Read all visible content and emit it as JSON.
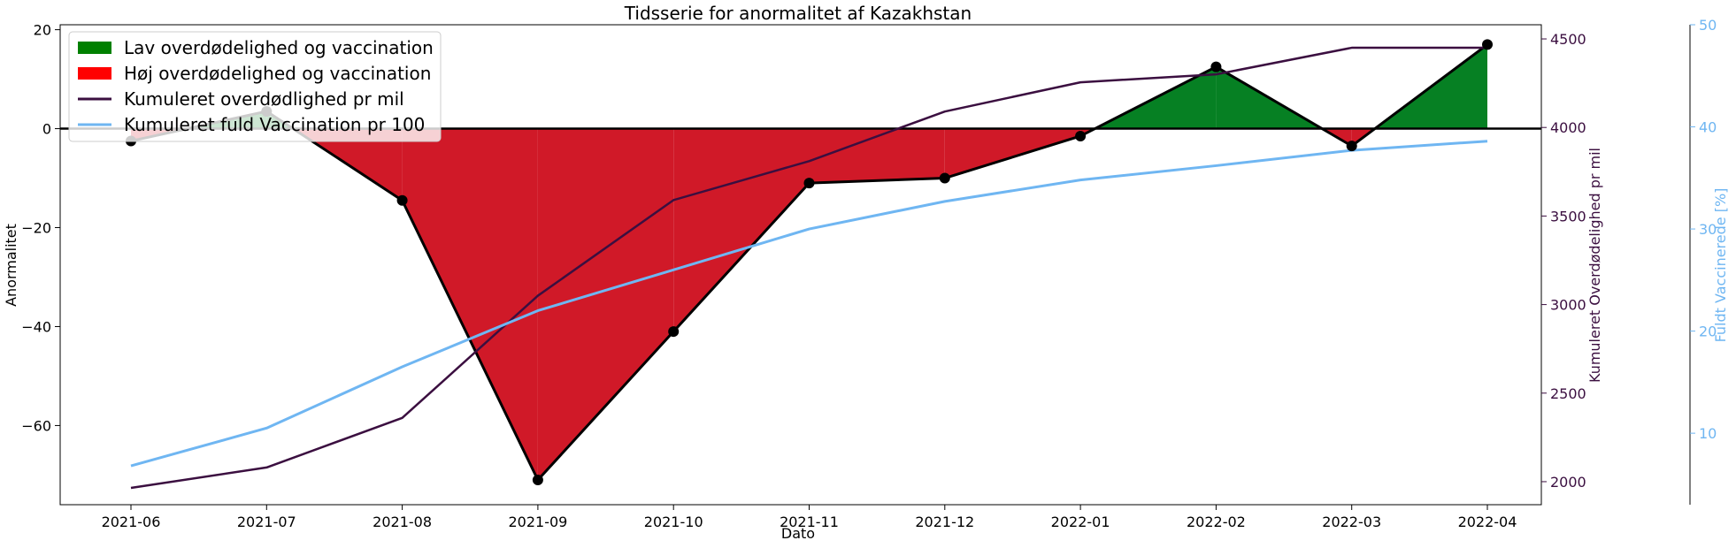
{
  "chart_data": {
    "type": "area",
    "title": "Tidsserie for anormalitet af Kazakhstan",
    "xlabel": "Dato",
    "ylabel": "Anormalitet",
    "ylabel_right": "Kumuleret Overdødelighed pr mil",
    "ylabel_far_right": "Fuldt Vaccinerede [%]",
    "x": [
      "2021-06",
      "2021-07",
      "2021-08",
      "2021-09",
      "2021-10",
      "2021-11",
      "2021-12",
      "2022-01",
      "2022-02",
      "2022-03",
      "2022-04"
    ],
    "ylim": [
      -76,
      21
    ],
    "ylim_right": [
      1870,
      4580
    ],
    "ylim_far_right": [
      3,
      50
    ],
    "y_ticks": [
      20,
      0,
      -20,
      -40,
      -60
    ],
    "y_right_ticks": [
      4500,
      4000,
      3500,
      3000,
      2500,
      2000
    ],
    "y_far_right_ticks": [
      50,
      40,
      30,
      20,
      10
    ],
    "series": [
      {
        "name": "Anormalitet",
        "axis": "left",
        "values": [
          -2.5,
          3.5,
          -14.5,
          -71,
          -41,
          -11,
          -10,
          -1.5,
          12.5,
          -3.5,
          17
        ]
      },
      {
        "name": "Kumuleret overdødlighed pr mil",
        "axis": "right",
        "color": "#3b0f40",
        "values": [
          1965,
          2080,
          2360,
          3050,
          3590,
          3810,
          4090,
          4255,
          4300,
          4450,
          4450
        ]
      },
      {
        "name": "Kumuleret fuld Vaccination pr 100",
        "axis": "far_right",
        "color": "#6fb6f2",
        "values": [
          6.8,
          10.5,
          16.5,
          22,
          26,
          30,
          32.7,
          34.8,
          36.2,
          37.7,
          38.6
        ]
      }
    ],
    "legend": {
      "position": "top-left",
      "entries": [
        {
          "label": "Lav overdødelighed og vaccination",
          "kind": "patch",
          "color": "#008000"
        },
        {
          "label": "Høj overdødelighed og vaccination",
          "kind": "patch",
          "color": "#ff0000"
        },
        {
          "label": "Kumuleret overdødlighed pr mil",
          "kind": "line",
          "color": "#3b0f40"
        },
        {
          "label": "Kumuleret fuld Vaccination pr 100",
          "kind": "line",
          "color": "#6fb6f2"
        }
      ]
    },
    "colors": {
      "positive_fill": "#068023",
      "negative_fill": "#d01928",
      "anomaly_line": "#000000",
      "right_axis": "#3b0f40",
      "far_right_axis": "#6fb6f2"
    }
  }
}
